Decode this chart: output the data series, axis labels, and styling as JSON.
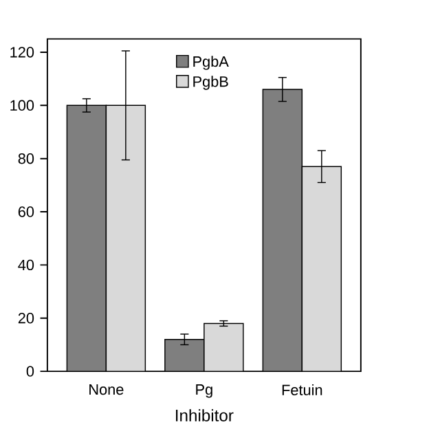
{
  "chart_data": {
    "type": "bar",
    "xlabel": "Inhibitor",
    "categories": [
      "None",
      "Pg",
      "Fetuin"
    ],
    "series": [
      {
        "name": "PgbA",
        "color": "#7f7f7f",
        "values": [
          100,
          12,
          106
        ],
        "errors": [
          2.5,
          2,
          4.5
        ]
      },
      {
        "name": "PgbB",
        "color": "#d9d9d9",
        "values": [
          100,
          18,
          77
        ],
        "errors": [
          20.5,
          1,
          6
        ]
      }
    ],
    "ylim": [
      0,
      125
    ],
    "yticks": [
      0,
      20,
      40,
      60,
      80,
      100,
      120
    ],
    "legend": "top",
    "grid": false
  }
}
